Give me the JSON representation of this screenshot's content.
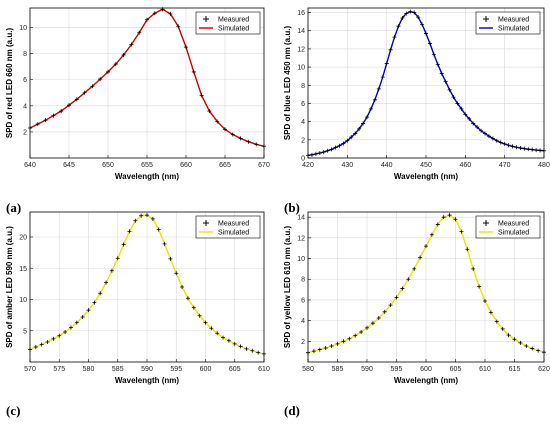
{
  "panel_labels": [
    "(a)",
    "(b)",
    "(c)",
    "(d)"
  ],
  "chart_data": [
    {
      "type": "line",
      "xlabel": "Wavelength (nm)",
      "ylabel": "SPD of  red LED  660 nm (a.u.)",
      "xlim": [
        640,
        670
      ],
      "ylim": [
        0,
        11.5
      ],
      "xticks": [
        640,
        645,
        650,
        655,
        660,
        665,
        670
      ],
      "yticks": [
        2,
        4,
        6,
        8,
        10
      ],
      "grid": true,
      "legend_position": "top-right",
      "series": [
        {
          "name": "Measured",
          "style": "markers",
          "color": "#000000",
          "x": [
            640,
            641,
            642,
            643,
            644,
            645,
            646,
            647,
            648,
            649,
            650,
            651,
            652,
            653,
            654,
            655,
            656,
            657,
            658,
            659,
            660,
            661,
            662,
            663,
            664,
            665,
            666,
            667,
            668,
            669,
            670
          ],
          "y": [
            2.3,
            2.6,
            2.9,
            3.25,
            3.6,
            4.05,
            4.5,
            5.0,
            5.5,
            6.05,
            6.6,
            7.2,
            7.9,
            8.7,
            9.6,
            10.6,
            11.1,
            11.4,
            11.05,
            10.1,
            8.5,
            6.6,
            4.8,
            3.6,
            2.8,
            2.2,
            1.8,
            1.5,
            1.25,
            1.05,
            0.9
          ]
        },
        {
          "name": "Simulated",
          "style": "line",
          "color": "#cc0000",
          "x": [
            640,
            641,
            642,
            643,
            644,
            645,
            646,
            647,
            648,
            649,
            650,
            651,
            652,
            653,
            654,
            655,
            656,
            657,
            658,
            659,
            660,
            661,
            662,
            663,
            664,
            665,
            666,
            667,
            668,
            669,
            670
          ],
          "y": [
            2.3,
            2.6,
            2.9,
            3.25,
            3.6,
            4.05,
            4.5,
            5.0,
            5.5,
            6.05,
            6.6,
            7.2,
            7.9,
            8.7,
            9.6,
            10.6,
            11.1,
            11.4,
            11.05,
            10.1,
            8.5,
            6.6,
            4.8,
            3.6,
            2.8,
            2.2,
            1.8,
            1.5,
            1.25,
            1.05,
            0.9
          ]
        }
      ]
    },
    {
      "type": "line",
      "xlabel": "Wavelength (nm)",
      "ylabel": "SPD of  blue LED  450 nm (a.u.)",
      "xlim": [
        420,
        480
      ],
      "ylim": [
        0,
        16.5
      ],
      "xticks": [
        420,
        430,
        440,
        450,
        460,
        470,
        480
      ],
      "yticks": [
        0,
        2,
        4,
        6,
        8,
        10,
        12,
        14,
        16
      ],
      "grid": true,
      "legend_position": "top-right",
      "series": [
        {
          "name": "Measured",
          "style": "markers",
          "color": "#000000",
          "x": [
            420,
            421,
            422,
            423,
            424,
            425,
            426,
            427,
            428,
            429,
            430,
            431,
            432,
            433,
            434,
            435,
            436,
            437,
            438,
            439,
            440,
            441,
            442,
            443,
            444,
            445,
            446,
            447,
            448,
            449,
            450,
            451,
            452,
            453,
            454,
            455,
            456,
            457,
            458,
            459,
            460,
            461,
            462,
            463,
            464,
            465,
            466,
            467,
            468,
            469,
            470,
            471,
            472,
            473,
            474,
            475,
            476,
            477,
            478,
            479,
            480
          ],
          "y": [
            0.3,
            0.35,
            0.45,
            0.55,
            0.65,
            0.8,
            0.95,
            1.15,
            1.35,
            1.6,
            1.9,
            2.3,
            2.7,
            3.2,
            3.8,
            4.5,
            5.4,
            6.4,
            7.6,
            8.9,
            10.4,
            11.9,
            13.3,
            14.5,
            15.4,
            15.9,
            16.1,
            16.0,
            15.5,
            14.7,
            13.7,
            12.6,
            11.4,
            10.3,
            9.3,
            8.4,
            7.5,
            6.7,
            6.0,
            5.4,
            4.8,
            4.3,
            3.8,
            3.4,
            3.0,
            2.7,
            2.4,
            2.15,
            1.9,
            1.7,
            1.55,
            1.4,
            1.28,
            1.18,
            1.1,
            1.03,
            0.97,
            0.92,
            0.87,
            0.83,
            0.8
          ]
        },
        {
          "name": "Simulated",
          "style": "line",
          "color": "#0000cc",
          "x": [
            420,
            421,
            422,
            423,
            424,
            425,
            426,
            427,
            428,
            429,
            430,
            431,
            432,
            433,
            434,
            435,
            436,
            437,
            438,
            439,
            440,
            441,
            442,
            443,
            444,
            445,
            446,
            447,
            448,
            449,
            450,
            451,
            452,
            453,
            454,
            455,
            456,
            457,
            458,
            459,
            460,
            461,
            462,
            463,
            464,
            465,
            466,
            467,
            468,
            469,
            470,
            471,
            472,
            473,
            474,
            475,
            476,
            477,
            478,
            479,
            480
          ],
          "y": [
            0.3,
            0.35,
            0.45,
            0.55,
            0.65,
            0.8,
            0.95,
            1.15,
            1.35,
            1.6,
            1.9,
            2.3,
            2.7,
            3.2,
            3.8,
            4.5,
            5.4,
            6.4,
            7.6,
            8.9,
            10.4,
            11.9,
            13.3,
            14.5,
            15.4,
            15.9,
            16.1,
            16.0,
            15.5,
            14.7,
            13.7,
            12.6,
            11.4,
            10.3,
            9.3,
            8.4,
            7.5,
            6.7,
            6.0,
            5.4,
            4.8,
            4.3,
            3.8,
            3.4,
            3.0,
            2.7,
            2.4,
            2.15,
            1.9,
            1.7,
            1.55,
            1.4,
            1.28,
            1.18,
            1.1,
            1.03,
            0.97,
            0.92,
            0.87,
            0.83,
            0.8
          ]
        }
      ]
    },
    {
      "type": "line",
      "xlabel": "Wavelength (nm)",
      "ylabel": "SPD of amber LED  590 nm (a.u.)",
      "xlim": [
        570,
        610
      ],
      "ylim": [
        0,
        24
      ],
      "xticks": [
        570,
        575,
        580,
        585,
        590,
        595,
        600,
        605,
        610
      ],
      "yticks": [
        5,
        10,
        15,
        20
      ],
      "grid": true,
      "legend_position": "top-right",
      "series": [
        {
          "name": "Measured",
          "style": "markers",
          "color": "#000000",
          "x": [
            570,
            571,
            572,
            573,
            574,
            575,
            576,
            577,
            578,
            579,
            580,
            581,
            582,
            583,
            584,
            585,
            586,
            587,
            588,
            589,
            590,
            591,
            592,
            593,
            594,
            595,
            596,
            597,
            598,
            599,
            600,
            601,
            602,
            603,
            604,
            605,
            606,
            607,
            608,
            609,
            610
          ],
          "y": [
            2.0,
            2.4,
            2.8,
            3.2,
            3.7,
            4.2,
            4.8,
            5.5,
            6.3,
            7.2,
            8.3,
            9.5,
            11.0,
            12.7,
            14.6,
            16.6,
            18.8,
            20.9,
            22.6,
            23.4,
            23.5,
            22.9,
            21.2,
            18.9,
            16.5,
            14.2,
            12.0,
            10.2,
            8.7,
            7.4,
            6.3,
            5.4,
            4.6,
            3.9,
            3.4,
            2.9,
            2.5,
            2.1,
            1.8,
            1.5,
            1.3
          ]
        },
        {
          "name": "Simulated",
          "style": "line",
          "color": "#e6e600",
          "x": [
            570,
            571,
            572,
            573,
            574,
            575,
            576,
            577,
            578,
            579,
            580,
            581,
            582,
            583,
            584,
            585,
            586,
            587,
            588,
            589,
            590,
            591,
            592,
            593,
            594,
            595,
            596,
            597,
            598,
            599,
            600,
            601,
            602,
            603,
            604,
            605,
            606,
            607,
            608,
            609,
            610
          ],
          "y": [
            2.0,
            2.4,
            2.8,
            3.2,
            3.7,
            4.2,
            4.8,
            5.5,
            6.3,
            7.2,
            8.3,
            9.5,
            11.0,
            12.7,
            14.6,
            16.6,
            18.8,
            20.9,
            22.6,
            23.4,
            23.5,
            22.9,
            21.2,
            18.9,
            16.5,
            14.2,
            12.0,
            10.2,
            8.7,
            7.4,
            6.3,
            5.4,
            4.6,
            3.9,
            3.4,
            2.9,
            2.5,
            2.1,
            1.8,
            1.5,
            1.3
          ]
        }
      ]
    },
    {
      "type": "line",
      "xlabel": "Wavelength (nm)",
      "ylabel": "SPD of yellow LED  610 nm (a.u.)",
      "xlim": [
        580,
        620
      ],
      "ylim": [
        0,
        14.5
      ],
      "xticks": [
        580,
        585,
        590,
        595,
        600,
        605,
        610,
        615,
        620
      ],
      "yticks": [
        2,
        4,
        6,
        8,
        10,
        12,
        14
      ],
      "grid": true,
      "legend_position": "top-right",
      "series": [
        {
          "name": "Measured",
          "style": "markers",
          "color": "#000000",
          "x": [
            580,
            581,
            582,
            583,
            584,
            585,
            586,
            587,
            588,
            589,
            590,
            591,
            592,
            593,
            594,
            595,
            596,
            597,
            598,
            599,
            600,
            601,
            602,
            603,
            604,
            605,
            606,
            607,
            608,
            609,
            610,
            611,
            612,
            613,
            614,
            615,
            616,
            617,
            618,
            619,
            620
          ],
          "y": [
            0.9,
            1.05,
            1.2,
            1.35,
            1.55,
            1.75,
            2.0,
            2.25,
            2.55,
            2.9,
            3.3,
            3.75,
            4.25,
            4.85,
            5.5,
            6.25,
            7.1,
            8.0,
            9.0,
            10.1,
            11.2,
            12.3,
            13.3,
            14.0,
            14.2,
            13.8,
            12.6,
            10.9,
            9.0,
            7.3,
            5.9,
            4.8,
            3.9,
            3.2,
            2.6,
            2.2,
            1.85,
            1.55,
            1.3,
            1.1,
            0.95
          ]
        },
        {
          "name": "Simulated",
          "style": "line",
          "color": "#e6e600",
          "x": [
            580,
            581,
            582,
            583,
            584,
            585,
            586,
            587,
            588,
            589,
            590,
            591,
            592,
            593,
            594,
            595,
            596,
            597,
            598,
            599,
            600,
            601,
            602,
            603,
            604,
            605,
            606,
            607,
            608,
            609,
            610,
            611,
            612,
            613,
            614,
            615,
            616,
            617,
            618,
            619,
            620
          ],
          "y": [
            0.9,
            1.05,
            1.2,
            1.35,
            1.55,
            1.75,
            2.0,
            2.25,
            2.55,
            2.9,
            3.3,
            3.75,
            4.25,
            4.85,
            5.5,
            6.25,
            7.1,
            8.0,
            9.0,
            10.1,
            11.2,
            12.3,
            13.3,
            14.0,
            14.2,
            13.8,
            12.6,
            10.9,
            9.0,
            7.3,
            5.9,
            4.8,
            3.9,
            3.2,
            2.6,
            2.2,
            1.85,
            1.55,
            1.3,
            1.1,
            0.95
          ]
        }
      ]
    }
  ]
}
